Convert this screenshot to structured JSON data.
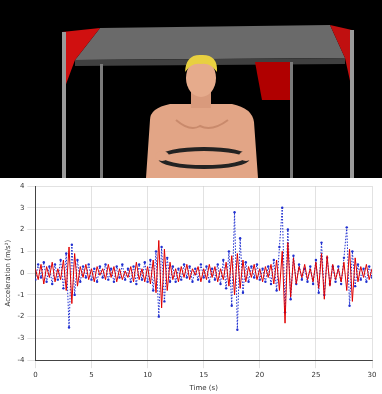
{
  "chart_data": {
    "type": "line",
    "x_label": "Time (s)",
    "y_label": "Acceleration (m/s²)",
    "x": [
      0,
      0.25,
      0.5,
      0.75,
      1,
      1.25,
      1.5,
      1.75,
      2,
      2.25,
      2.5,
      2.75,
      3,
      3.25,
      3.5,
      3.75,
      4,
      4.25,
      4.5,
      4.75,
      5,
      5.25,
      5.5,
      5.75,
      6,
      6.25,
      6.5,
      6.75,
      7,
      7.25,
      7.5,
      7.75,
      8,
      8.25,
      8.5,
      8.75,
      9,
      9.25,
      9.5,
      9.75,
      10,
      10.25,
      10.5,
      10.75,
      11,
      11.25,
      11.5,
      11.75,
      12,
      12.25,
      12.5,
      12.75,
      13,
      13.25,
      13.5,
      13.75,
      14,
      14.25,
      14.5,
      14.75,
      15,
      15.25,
      15.5,
      15.75,
      16,
      16.25,
      16.5,
      16.75,
      17,
      17.25,
      17.5,
      17.75,
      18,
      18.25,
      18.5,
      18.75,
      19,
      19.25,
      19.5,
      19.75,
      20,
      20.25,
      20.5,
      20.75,
      21,
      21.25,
      21.5,
      21.75,
      22,
      22.25,
      22.5,
      22.75,
      23,
      23.25,
      23.5,
      23.75,
      24,
      24.25,
      24.5,
      24.75,
      25,
      25.25,
      25.5,
      25.75,
      26,
      26.25,
      26.5,
      26.75,
      27,
      27.25,
      27.5,
      27.75,
      28,
      28.25,
      28.5,
      28.75,
      29,
      29.25,
      29.5,
      29.75,
      30
    ],
    "series": [
      {
        "color": "#e00000",
        "line_style": "solid",
        "values": [
          0.2,
          -0.3,
          0.4,
          -0.5,
          0.3,
          -0.2,
          0.5,
          -0.4,
          0.2,
          -0.3,
          0.6,
          -0.8,
          1.2,
          -1.4,
          0.9,
          -0.6,
          0.3,
          -0.2,
          0.4,
          -0.3,
          0.2,
          -0.4,
          0.3,
          -0.1,
          0.2,
          -0.3,
          0.4,
          -0.2,
          0.3,
          -0.4,
          0.2,
          -0.3,
          0.1,
          -0.2,
          0.3,
          -0.4,
          0.5,
          -0.3,
          0.2,
          -0.4,
          0.3,
          -0.5,
          0.6,
          -0.9,
          1.5,
          -1.6,
          1.1,
          -0.8,
          0.5,
          -0.3,
          0.2,
          -0.4,
          0.3,
          -0.2,
          0.4,
          -0.3,
          0.2,
          -0.1,
          0.3,
          -0.4,
          0.2,
          -0.3,
          0.4,
          -0.2,
          0.3,
          -0.4,
          0.2,
          -0.3,
          0.5,
          -0.6,
          0.8,
          -1.0,
          0.9,
          -0.7,
          0.6,
          -0.4,
          0.3,
          -0.2,
          0.4,
          -0.3,
          0.2,
          -0.4,
          0.3,
          -0.2,
          0.4,
          -0.5,
          0.6,
          -0.8,
          1.0,
          -2.3,
          1.4,
          -1.1,
          0.7,
          -0.5,
          0.3,
          -0.2,
          0.4,
          -0.3,
          0.2,
          -0.4,
          0.5,
          -0.7,
          0.9,
          -1.2,
          0.8,
          -0.6,
          0.4,
          -0.3,
          0.2,
          -0.4,
          0.5,
          -0.8,
          1.1,
          -1.3,
          0.7,
          -0.4,
          0.3,
          -0.2,
          0.4,
          -0.3,
          0.2
        ]
      },
      {
        "color": "#2030d0",
        "line_style": "dotted",
        "marker": "circle",
        "values": [
          -0.3,
          0.4,
          -0.2,
          0.5,
          -0.4,
          0.3,
          -0.5,
          0.4,
          -0.3,
          0.6,
          -0.7,
          0.9,
          -2.5,
          1.3,
          -1.0,
          0.6,
          -0.4,
          0.3,
          -0.2,
          0.4,
          -0.3,
          0.2,
          -0.4,
          0.3,
          -0.2,
          0.4,
          -0.3,
          0.2,
          -0.4,
          0.3,
          -0.2,
          0.4,
          -0.3,
          0.2,
          -0.4,
          0.3,
          -0.5,
          0.4,
          -0.3,
          0.5,
          -0.4,
          0.6,
          -0.8,
          1.0,
          -2.0,
          1.2,
          -1.3,
          0.7,
          -0.4,
          0.3,
          -0.4,
          0.2,
          -0.3,
          0.4,
          -0.2,
          0.3,
          -0.4,
          0.2,
          -0.3,
          0.4,
          -0.2,
          0.3,
          -0.4,
          0.2,
          -0.3,
          0.4,
          -0.5,
          0.6,
          -0.7,
          1.0,
          -1.5,
          2.8,
          -2.6,
          1.6,
          -0.9,
          0.5,
          -0.4,
          0.3,
          -0.2,
          0.4,
          -0.3,
          0.2,
          -0.4,
          0.3,
          -0.5,
          0.6,
          -0.8,
          1.2,
          3.0,
          -1.8,
          2.0,
          -1.2,
          0.8,
          -0.5,
          0.4,
          -0.3,
          0.2,
          -0.4,
          0.3,
          -0.5,
          0.6,
          -0.9,
          1.4,
          -1.0,
          0.7,
          -0.5,
          0.3,
          -0.4,
          0.3,
          -0.5,
          0.7,
          2.1,
          -1.5,
          1.0,
          -0.6,
          0.4,
          -0.3,
          0.2,
          -0.4,
          0.3,
          -0.2
        ]
      }
    ],
    "xlim": [
      0,
      30
    ],
    "xticks": [
      0,
      5,
      10,
      15,
      20,
      25,
      30
    ],
    "ylim": [
      -4,
      4
    ],
    "yticks": [
      -4,
      -3,
      -2,
      -1,
      0,
      1,
      2,
      3,
      4
    ],
    "grid": true
  }
}
